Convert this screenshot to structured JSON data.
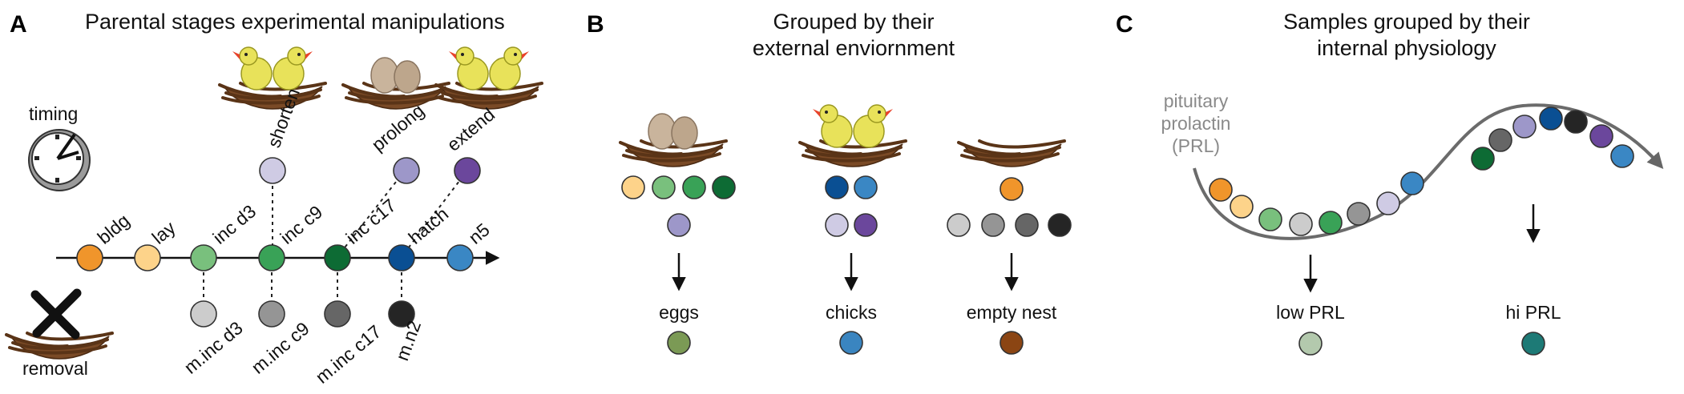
{
  "panels": {
    "a": {
      "letter": "A",
      "title": "Parental stages experimental manipulations",
      "timing_label": "timing",
      "removal_label": "removal",
      "timeline_labels": [
        "bldg",
        "lay",
        "inc d3",
        "inc c9",
        "inc c17",
        "hatch",
        "n5"
      ],
      "upper_labels": [
        "shorten",
        "prolong",
        "extend"
      ],
      "lower_labels": [
        "m.inc d3",
        "m.inc c9",
        "m.inc c17",
        "m.n2"
      ]
    },
    "b": {
      "letter": "B",
      "title_line1": "Grouped by their",
      "title_line2": "external enviornment",
      "groups": [
        "eggs",
        "chicks",
        "empty nest"
      ]
    },
    "c": {
      "letter": "C",
      "title_line1": "Samples grouped by their",
      "title_line2": "internal physiology",
      "curve_label_line1": "pituitary",
      "curve_label_line2": "prolactin",
      "curve_label_line3": "(PRL)",
      "groups": [
        "low PRL",
        "hi PRL"
      ]
    }
  },
  "colors": {
    "bldg": "#f0952b",
    "lay": "#fdd38a",
    "inc_d3": "#79c07d",
    "inc_c9": "#39a257",
    "inc_c17": "#0d6b34",
    "hatch": "#0a4f93",
    "n5": "#3a87c4",
    "shorten": "#cfcbe4",
    "prolong": "#9d97c9",
    "extend": "#6b479c",
    "m_inc_d3": "#cccccc",
    "m_inc_c9": "#959595",
    "m_inc_c17": "#666666",
    "m_n2": "#252525",
    "eggs_group": "#7b9a55",
    "chicks_group": "#3a85c0",
    "empty_nest_group": "#8b4513",
    "low_prl_group": "#b3c9ad",
    "hi_prl_group": "#1d7a76",
    "egg_fill": "#c9b49c",
    "nest": "#7a4a26",
    "chick_body": "#e8e25a",
    "chick_beak": "#e8432b"
  }
}
